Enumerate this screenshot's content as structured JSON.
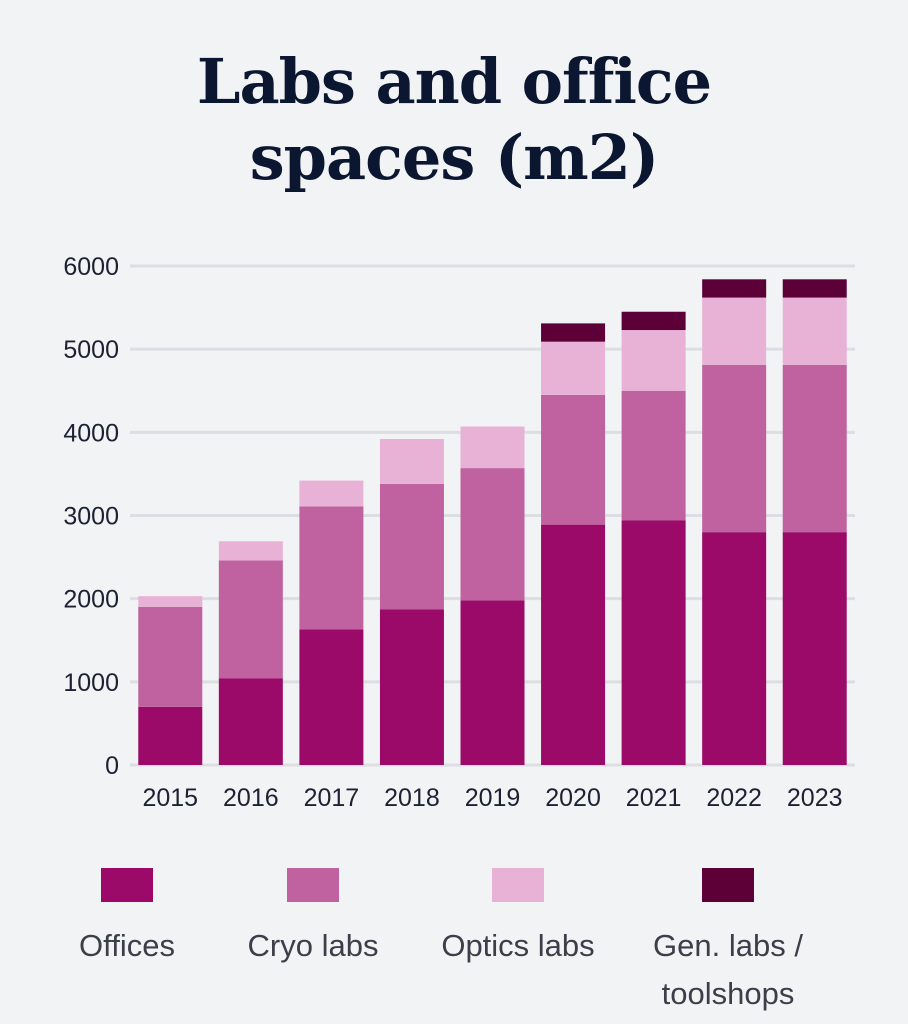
{
  "title_line1": "Labs and office",
  "title_line2": "spaces (m2)",
  "chart_data": {
    "type": "bar",
    "stacked": true,
    "title": "Labs and office spaces (m2)",
    "categories": [
      "2015",
      "2016",
      "2017",
      "2018",
      "2019",
      "2020",
      "2021",
      "2022",
      "2023"
    ],
    "series": [
      {
        "name": "Offices",
        "color": "#9b0a68",
        "values": [
          700,
          1040,
          1630,
          1870,
          1980,
          2890,
          2940,
          2800,
          2800
        ]
      },
      {
        "name": "Cryo labs",
        "color": "#c0629f",
        "values": [
          1200,
          1420,
          1480,
          1510,
          1590,
          1560,
          1560,
          2010,
          2010
        ]
      },
      {
        "name": "Optics labs",
        "color": "#e7b2d5",
        "values": [
          130,
          230,
          310,
          540,
          500,
          640,
          730,
          810,
          810
        ]
      },
      {
        "name": "Gen. labs / toolshops",
        "color": "#5c0037",
        "values": [
          0,
          0,
          0,
          0,
          0,
          220,
          220,
          220,
          220
        ]
      }
    ],
    "yticks": [
      0,
      1000,
      2000,
      3000,
      4000,
      5000,
      6000
    ],
    "ylim": [
      0,
      6000
    ],
    "grid": true,
    "legend_position": "bottom"
  },
  "legend": {
    "items": [
      {
        "label": "Offices",
        "color": "#9b0a68"
      },
      {
        "label": "Cryo labs",
        "color": "#c0629f"
      },
      {
        "label": "Optics labs",
        "color": "#e7b2d5"
      },
      {
        "label_line1": "Gen. labs /",
        "label_line2": "toolshops",
        "color": "#5c0037"
      }
    ]
  }
}
